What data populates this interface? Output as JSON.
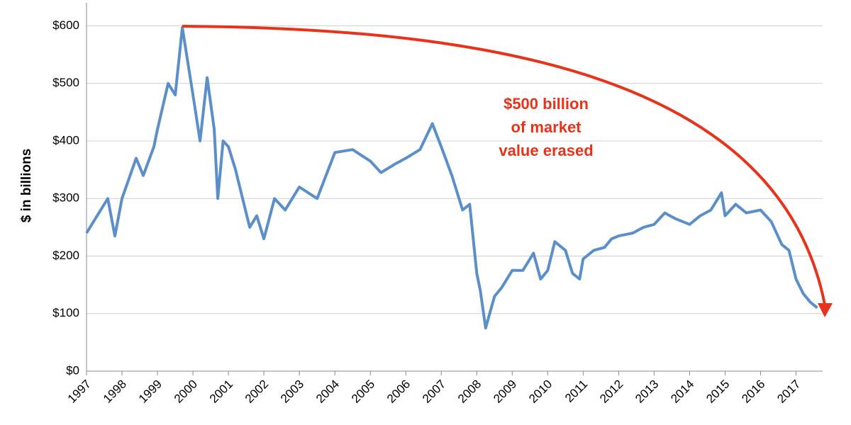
{
  "chart_data": {
    "type": "line",
    "ylabel": "$ in billions",
    "annotation": [
      "$500 billion",
      "of market",
      "value erased"
    ],
    "xlim": [
      1997,
      2017.75
    ],
    "xticks": [
      1997,
      1998,
      1999,
      2000,
      2001,
      2002,
      2003,
      2004,
      2005,
      2006,
      2007,
      2008,
      2009,
      2010,
      2011,
      2012,
      2013,
      2014,
      2015,
      2016,
      2017
    ],
    "ylim": [
      0,
      640
    ],
    "yticks": [
      {
        "value": 0,
        "label": "$0"
      },
      {
        "value": 100,
        "label": "$100"
      },
      {
        "value": 200,
        "label": "$200"
      },
      {
        "value": 300,
        "label": "$300"
      },
      {
        "value": 400,
        "label": "$400"
      },
      {
        "value": 500,
        "label": "$500"
      },
      {
        "value": 600,
        "label": "$600"
      }
    ],
    "grid": true,
    "series": [
      {
        "color": "#5b8fc9",
        "x": [
          1997.0,
          1997.3,
          1997.6,
          1997.8,
          1998.0,
          1998.4,
          1998.6,
          1998.9,
          1999.0,
          1999.3,
          1999.5,
          1999.7,
          2000.0,
          2000.2,
          2000.4,
          2000.6,
          2000.7,
          2000.85,
          2001.0,
          2001.2,
          2001.4,
          2001.6,
          2001.8,
          2002.0,
          2002.3,
          2002.6,
          2002.9,
          2003.0,
          2003.5,
          2004.0,
          2004.5,
          2005.0,
          2005.3,
          2005.7,
          2006.0,
          2006.4,
          2006.75,
          2007.0,
          2007.3,
          2007.6,
          2007.8,
          2008.0,
          2008.1,
          2008.25,
          2008.5,
          2008.7,
          2009.0,
          2009.3,
          2009.6,
          2009.8,
          2010.0,
          2010.2,
          2010.5,
          2010.7,
          2010.9,
          2011.0,
          2011.3,
          2011.6,
          2011.8,
          2012.0,
          2012.4,
          2012.7,
          2013.0,
          2013.3,
          2013.6,
          2014.0,
          2014.3,
          2014.6,
          2014.9,
          2015.0,
          2015.3,
          2015.6,
          2016.0,
          2016.3,
          2016.6,
          2016.8,
          2017.0,
          2017.2,
          2017.4,
          2017.6
        ],
        "values": [
          240,
          270,
          300,
          235,
          300,
          370,
          340,
          390,
          420,
          500,
          480,
          597,
          480,
          400,
          510,
          420,
          300,
          400,
          390,
          350,
          300,
          250,
          270,
          230,
          300,
          280,
          310,
          320,
          300,
          380,
          385,
          365,
          345,
          360,
          370,
          385,
          430,
          390,
          340,
          280,
          290,
          170,
          140,
          75,
          130,
          145,
          175,
          175,
          205,
          160,
          175,
          225,
          210,
          170,
          160,
          195,
          210,
          215,
          230,
          235,
          240,
          250,
          255,
          275,
          265,
          255,
          270,
          280,
          310,
          270,
          290,
          275,
          280,
          260,
          220,
          210,
          160,
          135,
          120,
          110
        ]
      }
    ]
  }
}
